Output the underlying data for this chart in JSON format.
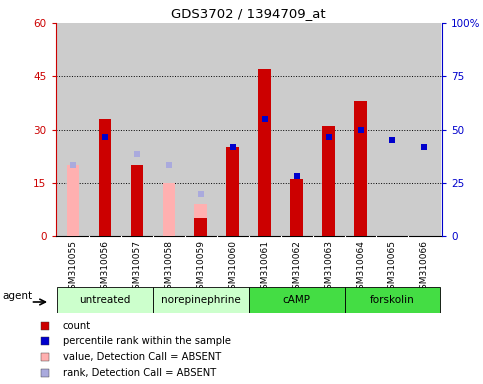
{
  "title": "GDS3702 / 1394709_at",
  "samples": [
    "GSM310055",
    "GSM310056",
    "GSM310057",
    "GSM310058",
    "GSM310059",
    "GSM310060",
    "GSM310061",
    "GSM310062",
    "GSM310063",
    "GSM310064",
    "GSM310065",
    "GSM310066"
  ],
  "red_bars": [
    0,
    33,
    20,
    0,
    5,
    25,
    47,
    16,
    31,
    38,
    0,
    0
  ],
  "pink_bars": [
    20,
    0,
    0,
    15,
    9,
    0,
    0,
    0,
    0,
    0,
    0,
    0
  ],
  "blue_sq": [
    20,
    28,
    23,
    20,
    0,
    25,
    33,
    17,
    28,
    30,
    27,
    25
  ],
  "lav_sq": [
    20,
    0,
    23,
    20,
    12,
    0,
    0,
    0,
    0,
    0,
    0,
    0
  ],
  "blue_absent": [
    0,
    0,
    0,
    1,
    1,
    0,
    0,
    0,
    0,
    0,
    0,
    0
  ],
  "ylim": [
    0,
    60
  ],
  "yticks_left": [
    0,
    15,
    30,
    45,
    60
  ],
  "ytick_left_labels": [
    "0",
    "15",
    "30",
    "45",
    "60"
  ],
  "yticks_right": [
    0,
    15,
    30,
    45,
    60
  ],
  "ytick_right_labels": [
    "0",
    "25",
    "50",
    "75",
    "100%"
  ],
  "group_defs": [
    {
      "label": "untreated",
      "start": 0,
      "end": 3,
      "color": "#ccffcc"
    },
    {
      "label": "norepinephrine",
      "start": 3,
      "end": 6,
      "color": "#ccffcc"
    },
    {
      "label": "cAMP",
      "start": 6,
      "end": 9,
      "color": "#44dd44"
    },
    {
      "label": "forskolin",
      "start": 9,
      "end": 12,
      "color": "#44dd44"
    }
  ],
  "bar_width": 0.4,
  "red_color": "#cc0000",
  "pink_color": "#ffb0b0",
  "blue_color": "#0000cc",
  "lav_color": "#aaaadd",
  "col_bg": "#cccccc",
  "plot_bg": "#ffffff",
  "left_ax_color": "#cc0000",
  "right_ax_color": "#0000cc",
  "legend_items": [
    {
      "color": "#cc0000",
      "label": "count"
    },
    {
      "color": "#0000cc",
      "label": "percentile rank within the sample"
    },
    {
      "color": "#ffb0b0",
      "label": "value, Detection Call = ABSENT"
    },
    {
      "color": "#aaaadd",
      "label": "rank, Detection Call = ABSENT"
    }
  ]
}
